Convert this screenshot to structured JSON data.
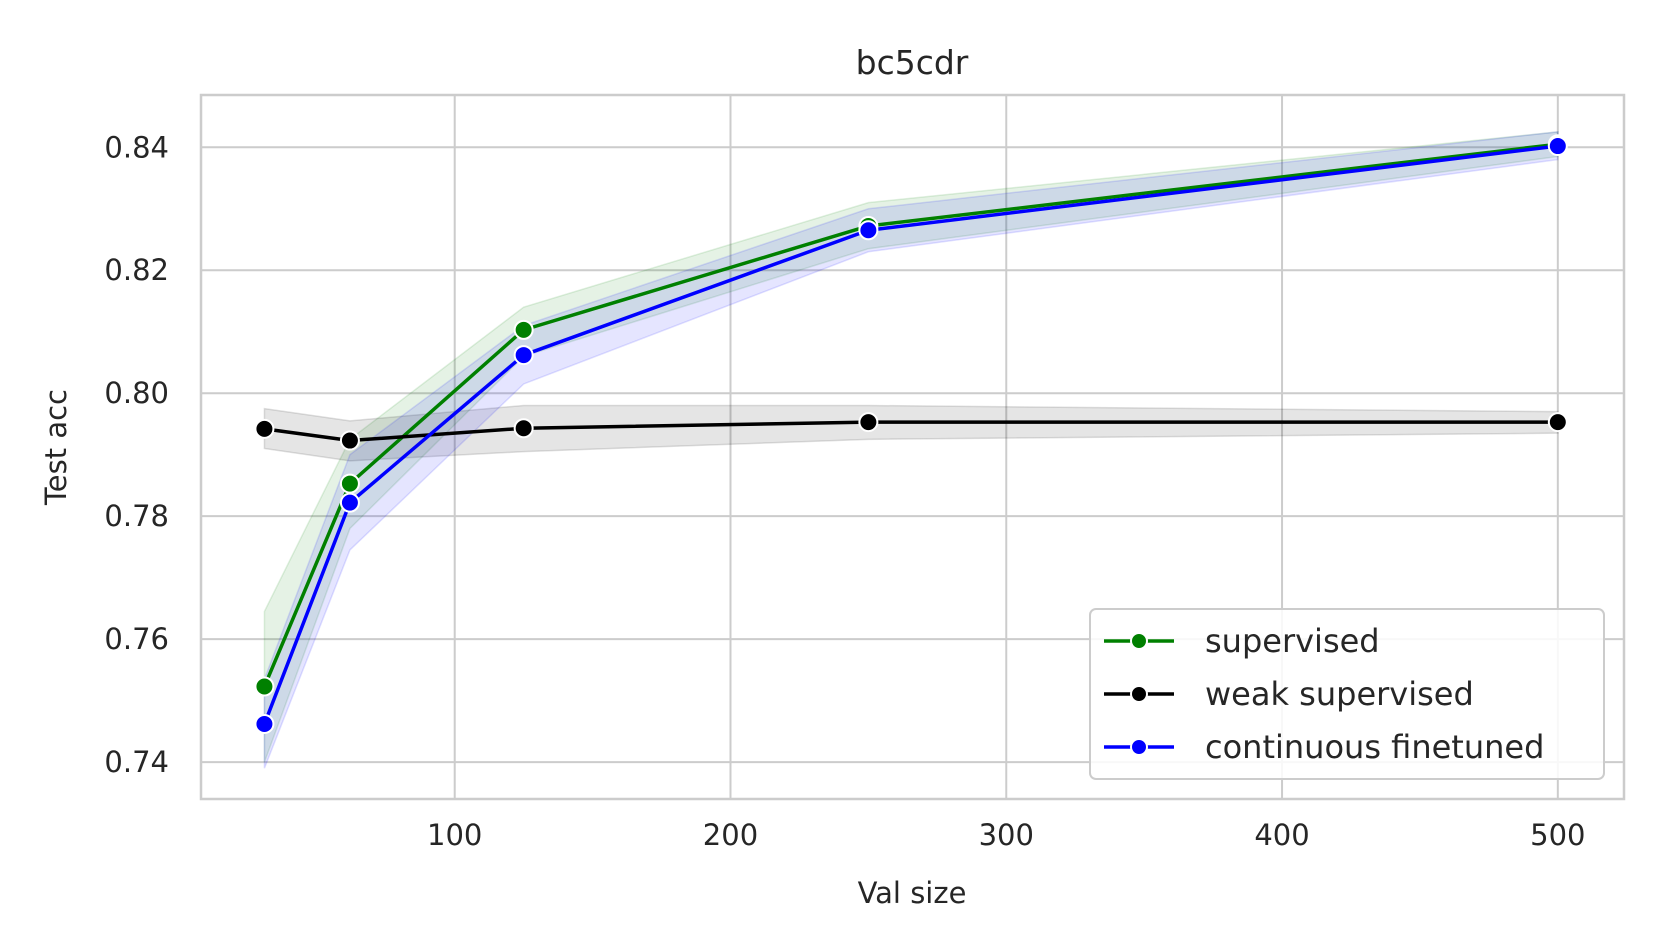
{
  "chart_data": {
    "type": "line",
    "title": "bc5cdr",
    "xlabel": "Val size",
    "ylabel": "Test acc",
    "xlim": [
      8,
      524
    ],
    "ylim": [
      0.734,
      0.8485
    ],
    "xticks": [
      100,
      200,
      300,
      400,
      500
    ],
    "yticks": [
      0.74,
      0.76,
      0.78,
      0.8,
      0.82,
      0.84
    ],
    "ytick_labels": [
      "0.74",
      "0.76",
      "0.78",
      "0.80",
      "0.82",
      "0.84"
    ],
    "grid": true,
    "legend_position": "lower-right",
    "x": [
      31,
      62,
      125,
      250,
      500
    ],
    "series": [
      {
        "name": "supervised",
        "color": "#008000",
        "values": [
          0.7523,
          0.7853,
          0.8103,
          0.8272,
          0.8405
        ],
        "lower": [
          0.74,
          0.778,
          0.806,
          0.8235,
          0.8385
        ],
        "upper": [
          0.7645,
          0.7925,
          0.814,
          0.831,
          0.8425
        ]
      },
      {
        "name": "weak supervised",
        "color": "#000000",
        "values": [
          0.7942,
          0.7923,
          0.7943,
          0.7953,
          0.7953
        ],
        "lower": [
          0.791,
          0.789,
          0.7905,
          0.7925,
          0.7935
        ],
        "upper": [
          0.7975,
          0.7955,
          0.798,
          0.798,
          0.797
        ]
      },
      {
        "name": "continuous finetuned",
        "color": "#0000ff",
        "values": [
          0.7462,
          0.7822,
          0.8062,
          0.8265,
          0.8402
        ],
        "lower": [
          0.739,
          0.7745,
          0.8015,
          0.823,
          0.838
        ],
        "upper": [
          0.7535,
          0.79,
          0.811,
          0.83,
          0.8425
        ]
      }
    ]
  }
}
